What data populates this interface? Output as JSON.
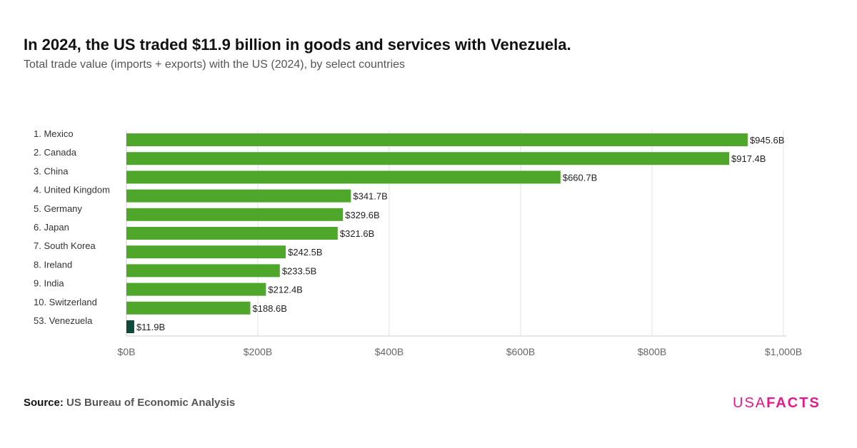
{
  "title": "In 2024, the US traded $11.9 billion in goods and services with Venezuela.",
  "subtitle": "Total trade value (imports + exports) with the US (2024), by select countries",
  "source_label": "Source:",
  "source": "US Bureau of Economic Analysis",
  "logo": {
    "a": "USA",
    "b": "FACTS"
  },
  "colors": {
    "bar": "#4ea72a",
    "highlight": "#0d4a3a",
    "brand": "#e6198a"
  },
  "chart_data": {
    "type": "bar",
    "orientation": "horizontal",
    "categories": [
      "1. Mexico",
      "2. Canada",
      "3. China",
      "4. United Kingdom",
      "5. Germany",
      "6. Japan",
      "7. South Korea",
      "8. Ireland",
      "9. India",
      "10. Switzerland",
      "53. Venezuela"
    ],
    "values": [
      945.6,
      917.4,
      660.7,
      341.7,
      329.6,
      321.6,
      242.5,
      233.5,
      212.4,
      188.6,
      11.9
    ],
    "data_labels": [
      "$945.6B",
      "$917.4B",
      "$660.7B",
      "$341.7B",
      "$329.6B",
      "$321.6B",
      "$242.5B",
      "$233.5B",
      "$212.4B",
      "$188.6B",
      "$11.9B"
    ],
    "highlight": "53. Venezuela",
    "xlim": [
      0,
      1000
    ],
    "xticks": [
      0,
      200,
      400,
      600,
      800,
      1000
    ],
    "xtick_labels": [
      "$0B",
      "$200B",
      "$400B",
      "$600B",
      "$800B",
      "$1,000B"
    ],
    "grid": true,
    "legend": "none"
  }
}
